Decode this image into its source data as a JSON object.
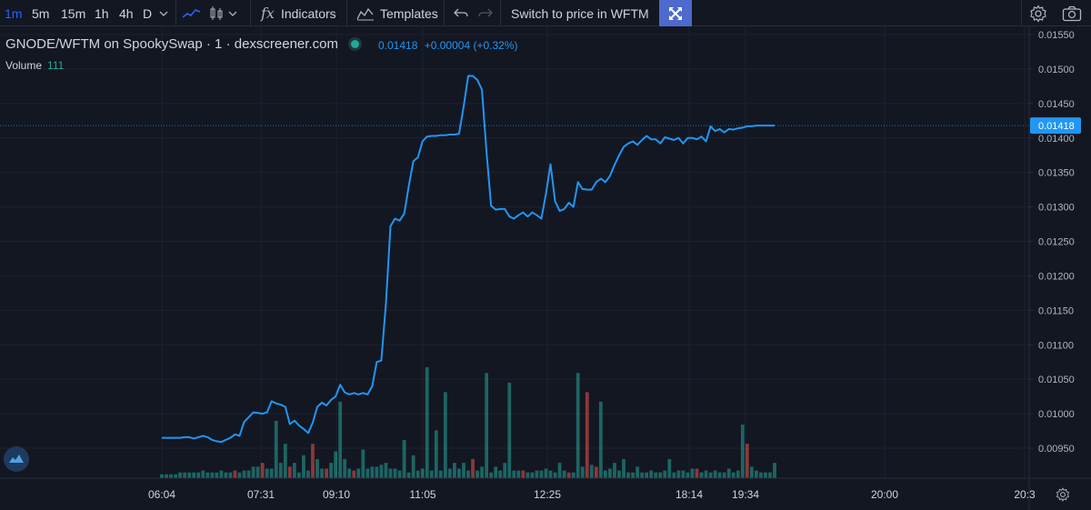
{
  "toolbar": {
    "intervals": [
      "1m",
      "5m",
      "15m",
      "1h",
      "4h",
      "D"
    ],
    "active_interval": "1m",
    "indicators_label": "Indicators",
    "templates_label": "Templates",
    "switch_label": "Switch to price in WFTM"
  },
  "header": {
    "symbol": "GNODE/WFTM on SpookySwap · 1 · dexscreener.com",
    "price": "0.01418",
    "change": "+0.00004 (+0.32%)",
    "volume_label": "Volume",
    "volume_value": "111"
  },
  "colors": {
    "background": "#131722",
    "line": "#2196f3",
    "up_volume": "#26a69a",
    "down_volume": "#ef5350",
    "grid": "#1e222d",
    "price_tag": "#2196f3"
  },
  "icons": [
    "chevron-down-icon",
    "line-chart-icon",
    "candles-icon",
    "fx-icon",
    "templates-icon",
    "undo-icon",
    "redo-icon",
    "fullscreen-icon",
    "settings-icon",
    "camera-icon",
    "dexscreener-logo-icon"
  ],
  "chart_data": {
    "type": "line",
    "title": "GNODE/WFTM on SpookySwap",
    "y_tick_labels": [
      "0.01550",
      "0.01500",
      "0.01450",
      "0.01400",
      "0.01350",
      "0.01300",
      "0.01250",
      "0.01200",
      "0.01150",
      "0.01100",
      "0.01050",
      "0.01000",
      "0.00950"
    ],
    "ylim": [
      0.0092,
      0.0156
    ],
    "x_tick_labels": [
      "06:04",
      "07:31",
      "09:10",
      "11:05",
      "12:25",
      "18:14",
      "19:34",
      "20:00",
      "20:3"
    ],
    "last_price": 0.01418,
    "last_price_label": "0.01418",
    "series": [
      {
        "x": [
          0,
          1,
          2,
          3,
          4,
          5,
          6,
          7,
          8,
          9,
          10,
          11,
          12,
          13,
          14,
          15,
          16,
          17,
          18,
          19,
          20,
          21,
          22,
          23,
          24,
          25,
          26,
          27,
          28,
          29,
          30,
          31,
          32,
          33,
          34,
          35,
          36,
          37,
          38,
          39,
          40,
          41,
          42,
          43,
          44,
          45,
          46,
          47,
          48,
          49,
          50,
          51,
          52,
          53,
          54,
          55,
          56,
          57,
          58,
          59,
          60,
          61,
          62,
          63,
          64,
          65,
          66,
          67,
          68,
          69,
          70,
          71,
          72,
          73,
          74,
          75,
          76,
          77,
          78,
          79,
          80,
          81,
          82,
          83,
          84,
          85,
          86,
          87,
          88,
          89,
          90,
          91,
          92,
          93,
          94,
          95,
          96,
          97,
          98,
          99,
          100,
          101,
          102,
          103,
          104,
          105,
          106,
          107,
          108,
          109,
          110,
          111,
          112,
          113,
          114,
          115,
          116,
          117,
          118,
          119,
          120,
          121,
          122,
          123,
          124,
          125,
          126,
          127,
          128,
          129,
          130,
          131,
          132,
          133,
          134
        ],
        "values": [
          0.00965,
          0.00965,
          0.00965,
          0.00965,
          0.00965,
          0.00966,
          0.00966,
          0.00964,
          0.00966,
          0.00968,
          0.00966,
          0.00962,
          0.0096,
          0.00959,
          0.00962,
          0.00965,
          0.0097,
          0.00968,
          0.00988,
          0.00995,
          0.01002,
          0.01001,
          0.01,
          0.01002,
          0.01018,
          0.01015,
          0.01013,
          0.0101,
          0.00985,
          0.0099,
          0.00983,
          0.00978,
          0.00972,
          0.00987,
          0.0101,
          0.01016,
          0.01012,
          0.0102,
          0.01025,
          0.01042,
          0.01031,
          0.01028,
          0.0103,
          0.01028,
          0.0103,
          0.01028,
          0.0104,
          0.01075,
          0.01077,
          0.0116,
          0.01272,
          0.01283,
          0.0128,
          0.0129,
          0.0133,
          0.01366,
          0.01372,
          0.01395,
          0.01402,
          0.01403,
          0.01403,
          0.01404,
          0.01404,
          0.01405,
          0.01405,
          0.01406,
          0.01446,
          0.0149,
          0.0149,
          0.01484,
          0.0147,
          0.0138,
          0.01302,
          0.01296,
          0.01297,
          0.01297,
          0.01286,
          0.01283,
          0.01288,
          0.01292,
          0.01286,
          0.01292,
          0.01288,
          0.01283,
          0.01319,
          0.01362,
          0.01308,
          0.01294,
          0.01297,
          0.01306,
          0.013,
          0.01336,
          0.01326,
          0.01325,
          0.01325,
          0.01336,
          0.01341,
          0.01336,
          0.01345,
          0.01361,
          0.01375,
          0.01387,
          0.01392,
          0.01395,
          0.0139,
          0.01397,
          0.01403,
          0.01398,
          0.01398,
          0.01392,
          0.01401,
          0.01399,
          0.01397,
          0.014,
          0.01392,
          0.014,
          0.014,
          0.01398,
          0.01402,
          0.01395,
          0.01417,
          0.0141,
          0.01413,
          0.01408,
          0.01413,
          0.01412,
          0.01414,
          0.01415,
          0.01417,
          0.01417,
          0.01418,
          0.01418,
          0.01418,
          0.01418,
          0.01418
        ]
      }
    ],
    "volume": {
      "values": [
        2,
        2,
        2,
        2,
        3,
        3,
        3,
        3,
        3,
        4,
        3,
        3,
        3,
        4,
        3,
        3,
        4,
        3,
        4,
        4,
        6,
        6,
        8,
        5,
        5,
        30,
        8,
        18,
        6,
        8,
        3,
        12,
        4,
        18,
        10,
        5,
        5,
        8,
        14,
        40,
        10,
        5,
        4,
        5,
        15,
        5,
        6,
        6,
        7,
        8,
        5,
        5,
        4,
        20,
        3,
        12,
        4,
        5,
        58,
        4,
        25,
        4,
        45,
        5,
        8,
        5,
        8,
        4,
        10,
        4,
        6,
        55,
        3,
        6,
        4,
        8,
        50,
        4,
        4,
        4,
        3,
        3,
        4,
        4,
        5,
        4,
        3,
        8,
        4,
        3,
        3,
        55,
        6,
        45,
        7,
        6,
        40,
        4,
        5,
        8,
        4,
        10,
        3,
        3,
        6,
        3,
        3,
        4,
        3,
        3,
        4,
        10,
        3,
        4,
        4,
        3,
        5,
        5,
        3,
        4,
        3,
        4,
        3,
        3,
        5,
        3,
        4,
        28,
        18,
        6,
        4,
        3,
        3,
        3,
        8
      ],
      "up": [
        1,
        1,
        1,
        1,
        1,
        1,
        1,
        1,
        1,
        1,
        1,
        1,
        1,
        1,
        1,
        1,
        0,
        1,
        1,
        1,
        1,
        1,
        0,
        1,
        1,
        1,
        1,
        1,
        0,
        1,
        1,
        1,
        1,
        0,
        1,
        1,
        0,
        1,
        1,
        1,
        1,
        1,
        0,
        1,
        1,
        1,
        1,
        1,
        1,
        1,
        1,
        1,
        1,
        1,
        1,
        1,
        1,
        1,
        1,
        1,
        1,
        1,
        1,
        1,
        1,
        1,
        1,
        1,
        0,
        1,
        1,
        1,
        1,
        1,
        1,
        1,
        1,
        1,
        1,
        0,
        1,
        1,
        1,
        1,
        1,
        1,
        1,
        1,
        1,
        0,
        1,
        1,
        1,
        0,
        1,
        0,
        1,
        1,
        1,
        1,
        1,
        1,
        1,
        1,
        1,
        1,
        1,
        1,
        1,
        1,
        1,
        1,
        1,
        1,
        1,
        1,
        1,
        0,
        1,
        1,
        1,
        1,
        1,
        1,
        1,
        1,
        1,
        1,
        0,
        1,
        1,
        1,
        1,
        1,
        1
      ]
    }
  }
}
